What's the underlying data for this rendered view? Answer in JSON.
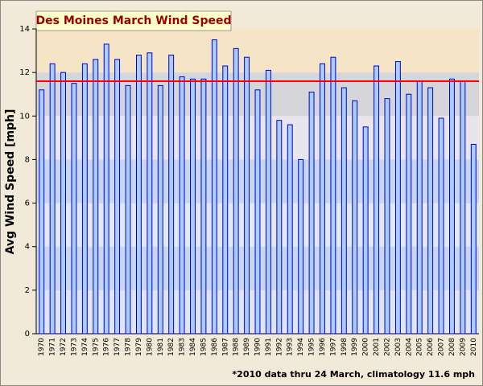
{
  "chart_data": {
    "type": "bar",
    "title": "Des Moines March Wind Speed",
    "y_label": "Avg Wind Speed [mph]",
    "footnote": "*2010 data thru 24 March, climatology 11.6 mph",
    "categories": [
      "1970",
      "1971",
      "1972",
      "1973",
      "1974",
      "1975",
      "1976",
      "1977",
      "1978",
      "1979",
      "1980",
      "1981",
      "1982",
      "1983",
      "1984",
      "1985",
      "1986",
      "1987",
      "1988",
      "1989",
      "1990",
      "1991",
      "1992",
      "1993",
      "1994",
      "1995",
      "1996",
      "1997",
      "1998",
      "1999",
      "2000",
      "2001",
      "2002",
      "2003",
      "2004",
      "2005",
      "2006",
      "2007",
      "2008",
      "2009",
      "2010"
    ],
    "values": [
      11.2,
      12.4,
      12.0,
      11.5,
      12.4,
      12.6,
      13.3,
      12.6,
      11.4,
      12.8,
      12.9,
      11.4,
      12.8,
      11.8,
      11.7,
      11.7,
      13.5,
      12.3,
      13.1,
      12.7,
      11.2,
      12.1,
      9.8,
      9.6,
      8.0,
      11.1,
      12.4,
      12.7,
      11.3,
      10.7,
      9.5,
      12.3,
      10.8,
      12.5,
      11.0,
      11.6,
      11.3,
      9.9,
      11.7,
      11.6,
      8.7
    ],
    "color": "#aaccff",
    "edge_color": "#0000cc",
    "reference_line": {
      "value": 11.6,
      "color": "#ff0000"
    },
    "ylim": [
      0,
      14
    ],
    "yticks": [
      0,
      2,
      4,
      6,
      8,
      10,
      12,
      14
    ]
  }
}
